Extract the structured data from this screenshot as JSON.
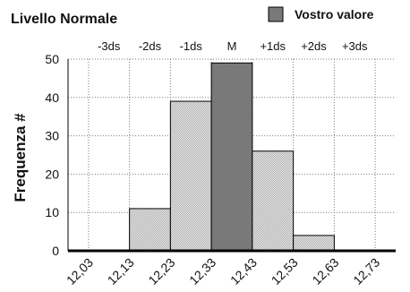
{
  "chart_data": {
    "type": "bar",
    "title": "Livello Normale",
    "legend": {
      "label": "Vostro valore",
      "swatch_color": "#7a7a7a",
      "placement": "top-right"
    },
    "ylabel": "Frequenza #",
    "xlabel": "",
    "ylim": [
      0,
      50
    ],
    "yticks": [
      0,
      10,
      20,
      30,
      40,
      50
    ],
    "xticks": [
      "12,03",
      "12,13",
      "12,23",
      "12,33",
      "12,43",
      "12,53",
      "12,63",
      "12,73"
    ],
    "sd_labels": [
      "-3ds",
      "-2ds",
      "-1ds",
      "M",
      "+1ds",
      "+2ds",
      "+3ds"
    ],
    "bins": [
      {
        "from": "12,03",
        "to": "12,13",
        "value": 0,
        "highlight": false
      },
      {
        "from": "12,13",
        "to": "12,23",
        "value": 11,
        "highlight": false
      },
      {
        "from": "12,23",
        "to": "12,33",
        "value": 39,
        "highlight": false
      },
      {
        "from": "12,33",
        "to": "12,43",
        "value": 49,
        "highlight": true
      },
      {
        "from": "12,43",
        "to": "12,53",
        "value": 26,
        "highlight": false
      },
      {
        "from": "12,53",
        "to": "12,63",
        "value": 4,
        "highlight": false
      },
      {
        "from": "12,63",
        "to": "12,73",
        "value": 0,
        "highlight": false
      }
    ],
    "grid": true,
    "colors": {
      "bar": "#d4d4d4",
      "highlight": "#7a7a7a",
      "grid": "#777777",
      "axis": "#000000"
    }
  }
}
